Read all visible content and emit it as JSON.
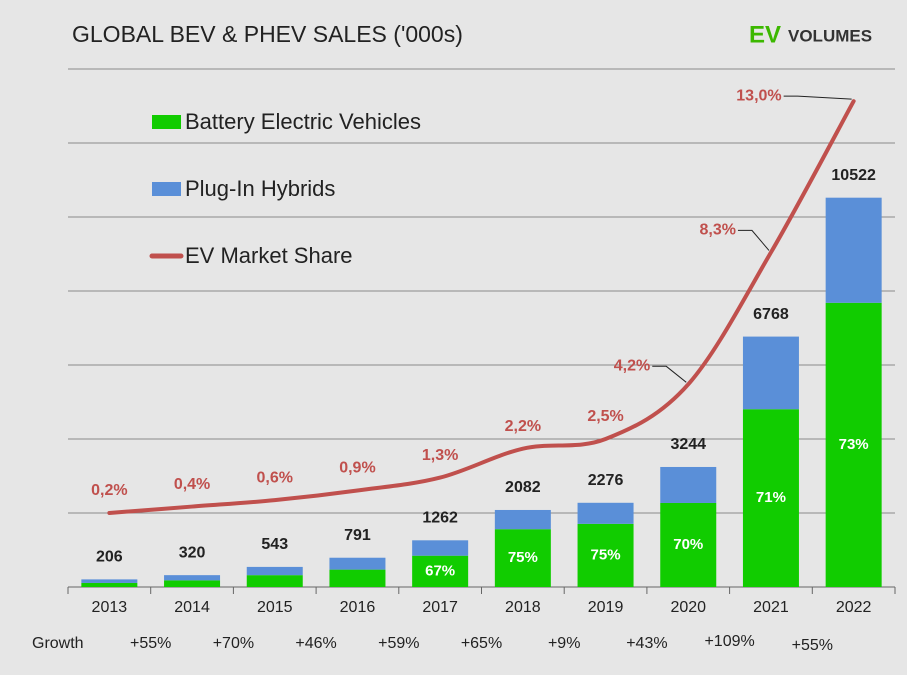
{
  "chart_data": {
    "type": "bar",
    "stacked": true,
    "title": "GLOBAL BEV & PHEV SALES ('000s)",
    "logo": [
      "EV",
      "VOLUMES"
    ],
    "categories": [
      "2013",
      "2014",
      "2015",
      "2016",
      "2017",
      "2018",
      "2019",
      "2020",
      "2021",
      "2022"
    ],
    "series": [
      {
        "name": "Battery Electric Vehicles",
        "color": "#11cc00",
        "values": [
          110,
          180,
          320,
          470,
          846,
          1562,
          1707,
          2271,
          4805,
          7681
        ]
      },
      {
        "name": "Plug-In Hybrids",
        "color": "#5a8fd8",
        "values": [
          96,
          140,
          223,
          321,
          416,
          520,
          569,
          973,
          1963,
          2841
        ]
      },
      {
        "name": "EV Market Share",
        "type": "line",
        "axis": "y2",
        "color": "#c0504d",
        "values": [
          0.2,
          0.4,
          0.6,
          0.9,
          1.3,
          2.2,
          2.5,
          4.2,
          8.3,
          13.0
        ],
        "value_labels": [
          "0,2%",
          "0,4%",
          "0,6%",
          "0,9%",
          "1,3%",
          "2,2%",
          "2,5%",
          "4,2%",
          "8,3%",
          "13,0%"
        ]
      }
    ],
    "totals": [
      206,
      320,
      543,
      791,
      1262,
      2082,
      2276,
      3244,
      6768,
      10522
    ],
    "bev_share": {
      "values": [
        null,
        null,
        null,
        null,
        67,
        75,
        75,
        70,
        71,
        73
      ],
      "value_labels": [
        null,
        null,
        null,
        null,
        "67%",
        "75%",
        "75%",
        "70%",
        "71%",
        "73%"
      ]
    },
    "growth": {
      "label": "Growth",
      "values": [
        55,
        70,
        46,
        59,
        65,
        9,
        43,
        109,
        55
      ],
      "value_labels": [
        "+55%",
        "+70%",
        "+46%",
        "+59%",
        "+65%",
        "+9%",
        "+43%",
        "+109%",
        "+55%"
      ]
    },
    "ylim": [
      0,
      14000
    ],
    "yticks": [
      0,
      2000,
      4000,
      6000,
      8000,
      10000,
      12000,
      14000
    ],
    "y2lim": [
      -2.1,
      14
    ],
    "grid": true
  }
}
